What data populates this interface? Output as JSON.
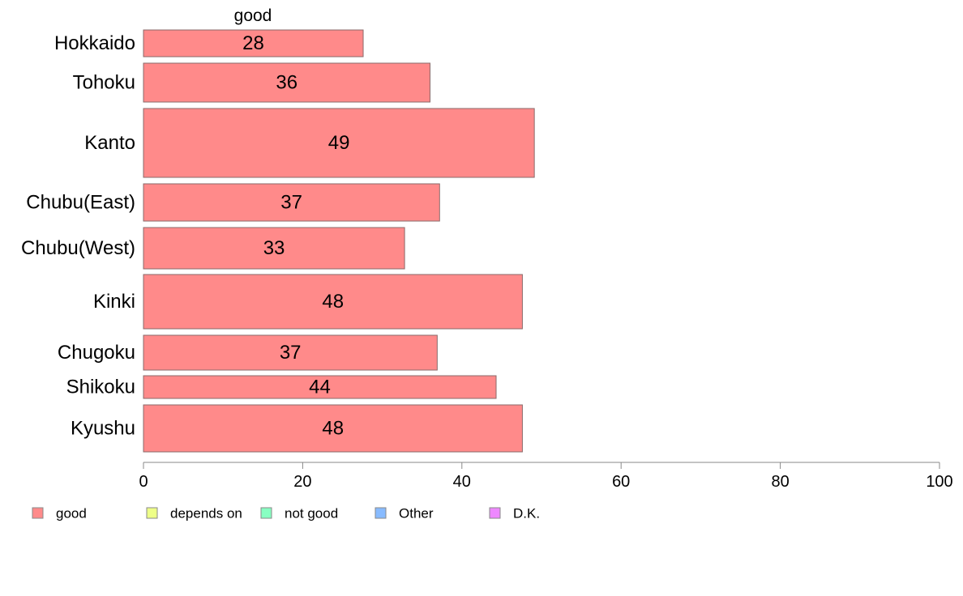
{
  "chart_data": {
    "type": "bar",
    "orientation": "horizontal",
    "series_label": "good",
    "categories": [
      "Hokkaido",
      "Tohoku",
      "Kanto",
      "Chubu(East)",
      "Chubu(West)",
      "Kinki",
      "Chugoku",
      "Shikoku",
      "Kyushu"
    ],
    "series": [
      {
        "name": "good",
        "color": "#ff8a8a",
        "values": [
          27.6,
          36.0,
          49.1,
          37.2,
          32.8,
          47.6,
          36.9,
          44.3,
          47.6
        ],
        "labels": [
          "28",
          "36",
          "49",
          "37",
          "33",
          "48",
          "37",
          "44",
          "48"
        ]
      }
    ],
    "xlim": [
      0,
      100
    ],
    "xticks": [
      0,
      20,
      40,
      60,
      80,
      100
    ],
    "grid": false,
    "legend": {
      "position": "bottom-left",
      "items": [
        {
          "label": "good",
          "color": "#ff8a8a"
        },
        {
          "label": "depends on",
          "color": "#eeff88"
        },
        {
          "label": "not good",
          "color": "#88ffc2"
        },
        {
          "label": "Other",
          "color": "#88bbff"
        },
        {
          "label": "D.K.",
          "color": "#ee88ff"
        }
      ]
    }
  }
}
